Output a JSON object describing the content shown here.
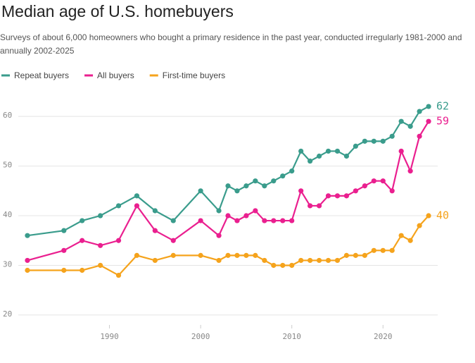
{
  "chart_data": {
    "type": "line",
    "title": "Median age of U.S. homebuyers",
    "subtitle": "Surveys of about 6,000 homeowners who bought a primary residence in the past year, conducted irregularly 1981-2000 and annually 2002-2025",
    "x": [
      1981,
      1985,
      1987,
      1989,
      1991,
      1993,
      1995,
      1997,
      2000,
      2002,
      2003,
      2004,
      2005,
      2006,
      2007,
      2008,
      2009,
      2010,
      2011,
      2012,
      2013,
      2014,
      2015,
      2016,
      2017,
      2018,
      2019,
      2020,
      2021,
      2022,
      2023,
      2024,
      2025
    ],
    "series": [
      {
        "name": "Repeat buyers",
        "color": "#3a9c8c",
        "values": [
          36,
          37,
          39,
          40,
          42,
          44,
          41,
          39,
          45,
          41,
          46,
          45,
          46,
          47,
          46,
          47,
          48,
          49,
          53,
          51,
          52,
          53,
          53,
          52,
          54,
          55,
          55,
          55,
          56,
          59,
          58,
          61,
          62
        ]
      },
      {
        "name": "All buyers",
        "color": "#ea1f8f",
        "values": [
          31,
          33,
          35,
          34,
          35,
          42,
          37,
          35,
          39,
          36,
          40,
          39,
          40,
          41,
          39,
          39,
          39,
          39,
          45,
          42,
          42,
          44,
          44,
          44,
          45,
          46,
          47,
          47,
          45,
          53,
          49,
          56,
          59
        ]
      },
      {
        "name": "First-time buyers",
        "color": "#f5a31c",
        "values": [
          29,
          29,
          29,
          30,
          28,
          32,
          31,
          32,
          32,
          31,
          32,
          32,
          32,
          32,
          31,
          30,
          30,
          30,
          31,
          31,
          31,
          31,
          31,
          32,
          32,
          32,
          33,
          33,
          33,
          36,
          35,
          38,
          40
        ]
      }
    ],
    "xlim": [
      1980,
      2026
    ],
    "xticks": [
      1990,
      2000,
      2010,
      2020
    ],
    "ylim": [
      18,
      63
    ],
    "yticks": [
      20,
      30,
      40,
      50,
      60
    ],
    "grid": true,
    "legend": "top-left"
  }
}
